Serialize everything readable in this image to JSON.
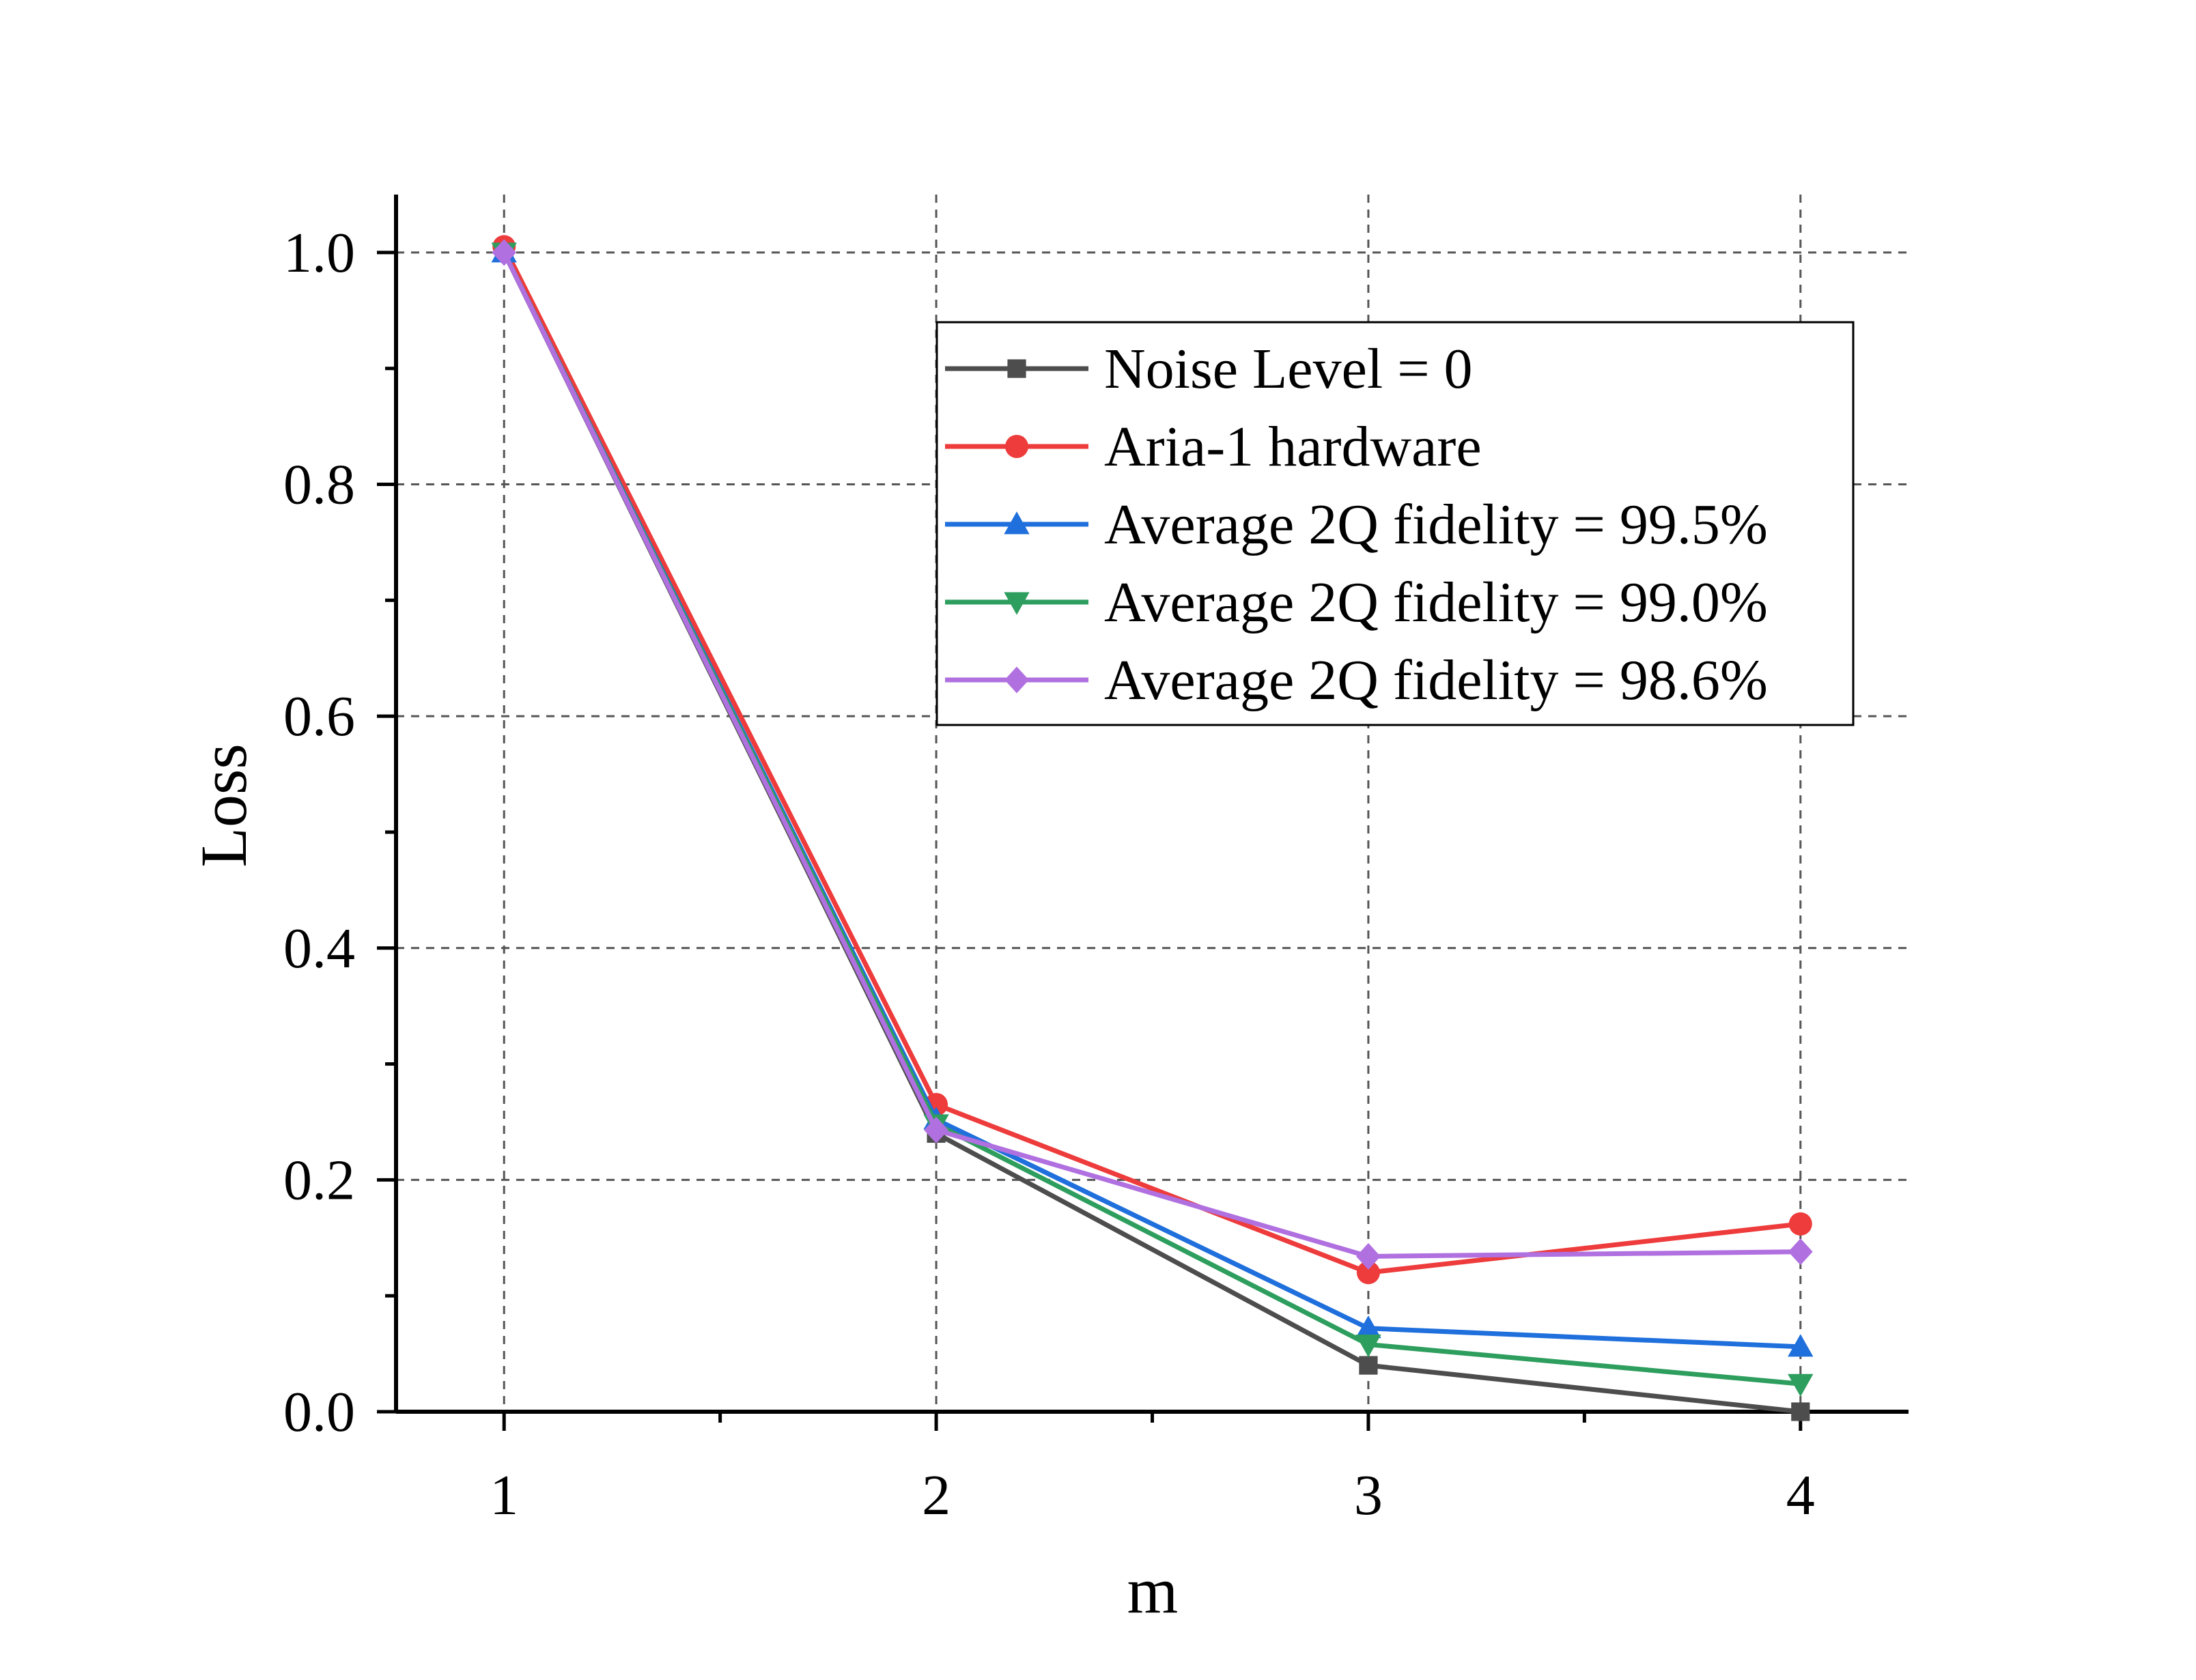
{
  "chart_data": {
    "type": "line",
    "title": "",
    "xlabel": "m",
    "ylabel": "Loss",
    "x": [
      1,
      2,
      3,
      4
    ],
    "xlim": [
      0.75,
      4.25
    ],
    "ylim": [
      0,
      1.05
    ],
    "xticks": [
      1,
      2,
      3,
      4
    ],
    "xtick_labels": [
      "1",
      "2",
      "3",
      "4"
    ],
    "yticks": [
      0.0,
      0.2,
      0.4,
      0.6,
      0.8,
      1.0
    ],
    "ytick_labels": [
      "0.0",
      "0.2",
      "0.4",
      "0.6",
      "0.8",
      "1.0"
    ],
    "grid": true,
    "legend_position": "top-right",
    "series": [
      {
        "name": "Noise Level = 0",
        "values": [
          1.0,
          0.24,
          0.04,
          0.0
        ],
        "color": "#4d4d4d",
        "marker": "square"
      },
      {
        "name": "Aria-1 hardware",
        "values": [
          1.005,
          0.265,
          0.12,
          0.162
        ],
        "color": "#ee3b3b",
        "marker": "circle"
      },
      {
        "name": "Average 2Q fidelity = 99.5%",
        "values": [
          1.0,
          0.252,
          0.072,
          0.056
        ],
        "color": "#1f6fdc",
        "marker": "triangle-up"
      },
      {
        "name": "Average 2Q fidelity = 99.0%",
        "values": [
          1.0,
          0.248,
          0.058,
          0.024
        ],
        "color": "#2e9e5e",
        "marker": "triangle-down"
      },
      {
        "name": "Average 2Q fidelity = 98.6%",
        "values": [
          1.0,
          0.243,
          0.134,
          0.138
        ],
        "color": "#b070e0",
        "marker": "diamond"
      }
    ]
  }
}
